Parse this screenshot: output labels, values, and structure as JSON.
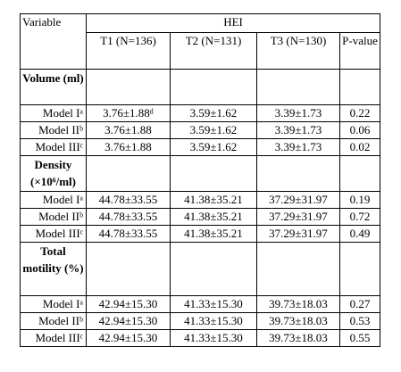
{
  "header": {
    "variable": "Variable",
    "group": "HEI",
    "columns": [
      "T1 (N=136)",
      "T2 (N=131)",
      "T3 (N=130)",
      "P-value"
    ]
  },
  "sections": [
    {
      "title": "Volume (ml)",
      "rows": [
        [
          "Model Iᵃ",
          "3.76±1.88ᵈ",
          "3.59±1.62",
          "3.39±1.73",
          "0.22"
        ],
        [
          "Model IIᵇ",
          "3.76±1.88",
          "3.59±1.62",
          "3.39±1.73",
          "0.06"
        ],
        [
          "Model IIIᶜ",
          "3.76±1.88",
          "3.59±1.62",
          "3.39±1.73",
          "0.02"
        ]
      ]
    },
    {
      "title": "Density (×10⁶/ml)",
      "rows": [
        [
          "Model Iᵃ",
          "44.78±33.55",
          "41.38±35.21",
          "37.29±31.97",
          "0.19"
        ],
        [
          "Model IIᵇ",
          "44.78±33.55",
          "41.38±35.21",
          "37.29±31.97",
          "0.72"
        ],
        [
          "Model IIIᶜ",
          "44.78±33.55",
          "41.38±35.21",
          "37.29±31.97",
          "0.49"
        ]
      ]
    },
    {
      "title": "Total motility (%)",
      "rows": [
        [
          "Model Iᵃ",
          "42.94±15.30",
          "41.33±15.30",
          "39.73±18.03",
          "0.27"
        ],
        [
          "Model IIᵇ",
          "42.94±15.30",
          "41.33±15.30",
          "39.73±18.03",
          "0.53"
        ],
        [
          "Model IIIᶜ",
          "42.94±15.30",
          "41.33±15.30",
          "39.73±18.03",
          "0.55"
        ]
      ]
    }
  ]
}
